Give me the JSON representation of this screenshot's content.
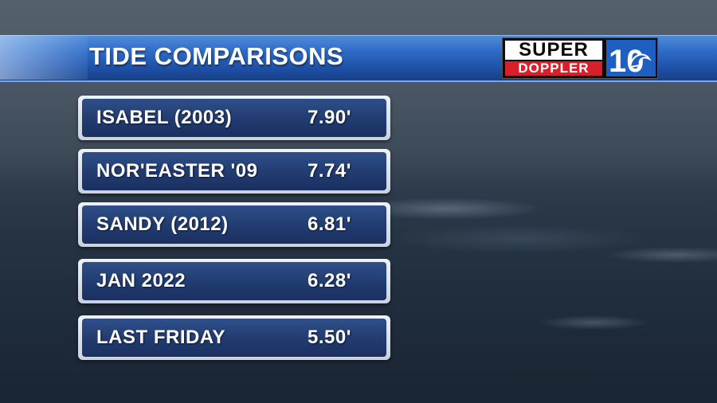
{
  "header": {
    "title": "TIDE COMPARISONS"
  },
  "logo": {
    "line1": "SUPER",
    "line2": "DOPPLER",
    "number": "10",
    "colors": {
      "brand_red": "#d8202a",
      "brand_blue": "#1f5fc2"
    }
  },
  "tides": [
    {
      "label": "ISABEL (2003)",
      "value": "7.90'"
    },
    {
      "label": "NOR'EASTER '09",
      "value": "7.74'"
    },
    {
      "label": "SANDY (2012)",
      "value": "6.81'"
    },
    {
      "label": "JAN 2022",
      "value": "6.28'"
    },
    {
      "label": "LAST FRIDAY",
      "value": "5.50'"
    }
  ]
}
